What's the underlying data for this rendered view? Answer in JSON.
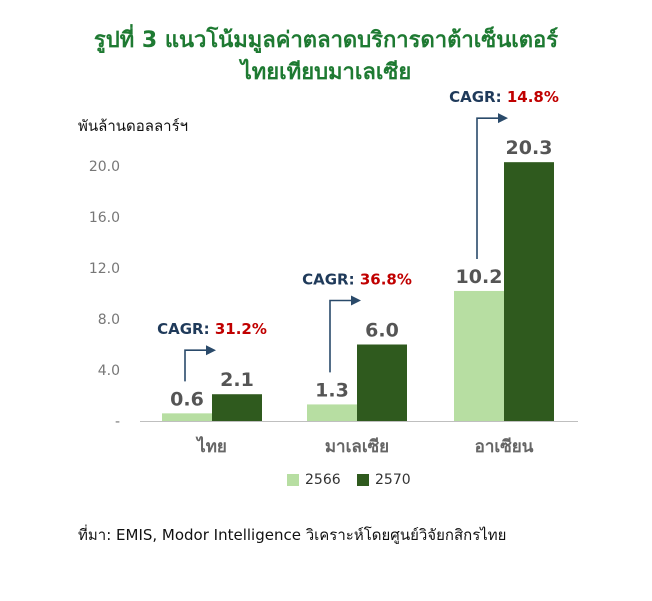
{
  "title_line1": "รูปที่ 3 แนวโน้มมูลค่าตลาดบริการดาต้าเซ็นเตอร์",
  "title_line2": "ไทยเทียบมาเลเซีย",
  "source": "ที่มา: EMIS, Modor Intelligence วิเคราะห์โดยศูนย์วิจัยกสิกรไทย",
  "colors": {
    "light": "#b7dea2",
    "dark": "#2f5a1e",
    "cagr_label": "#1f3a5a",
    "cagr_value": "#c00000",
    "arrow": "#2a4a6a"
  },
  "chart_data": {
    "type": "bar",
    "ylabel": "พันล้านดอลลาร์ฯ",
    "ylim": [
      0,
      22
    ],
    "yticks": [
      "-",
      "4.0",
      "8.0",
      "12.0",
      "16.0",
      "20.0"
    ],
    "ytick_values": [
      0,
      4,
      8,
      12,
      16,
      20
    ],
    "categories": [
      "ไทย",
      "มาเลเซีย",
      "อาเซียน"
    ],
    "series": [
      {
        "name": "2566",
        "values": [
          0.6,
          1.3,
          10.2
        ],
        "labels": [
          "0.6",
          "1.3",
          "10.2"
        ]
      },
      {
        "name": "2570",
        "values": [
          2.1,
          6.0,
          20.3
        ],
        "labels": [
          "2.1",
          "6.0",
          "20.3"
        ]
      }
    ],
    "cagr_label": "CAGR:",
    "cagr": [
      "31.2%",
      "36.8%",
      "14.8%"
    ],
    "legend_position": "bottom"
  }
}
